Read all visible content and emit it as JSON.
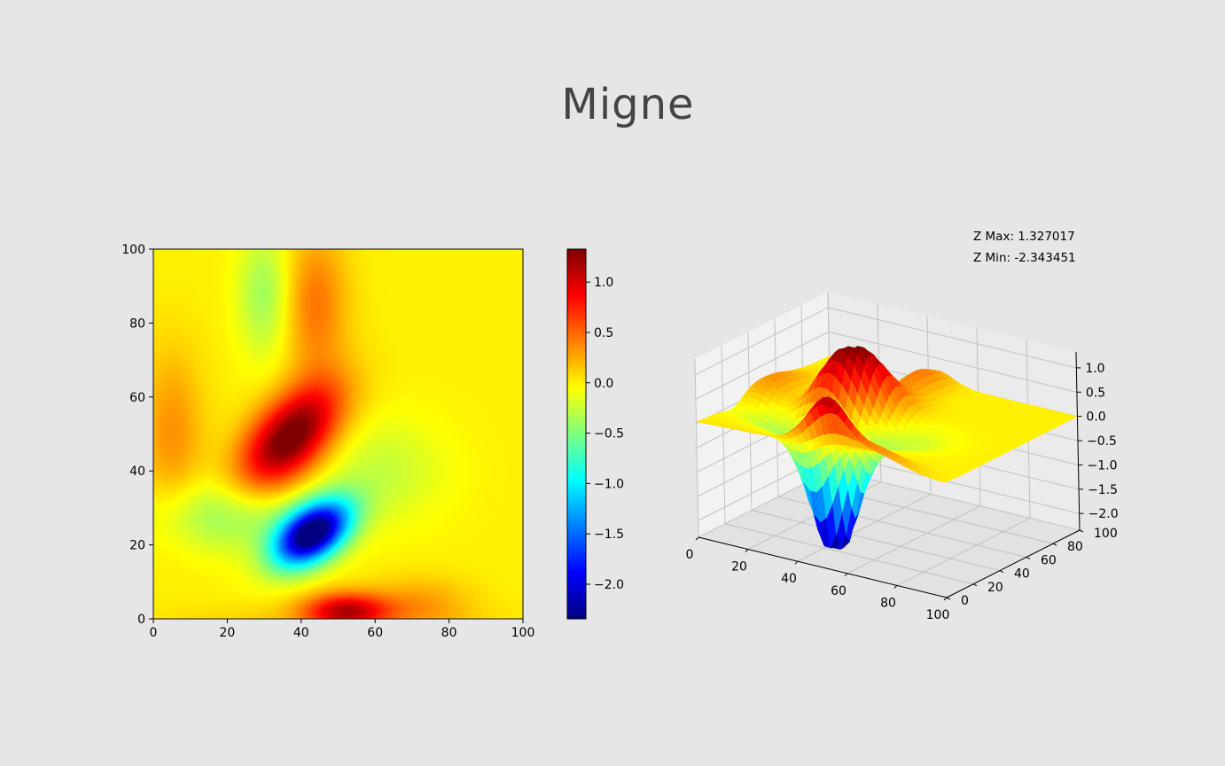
{
  "title": "Migne",
  "colors": {
    "background": "#e6e6e6",
    "title": "#444444",
    "colormap": "jet"
  },
  "z_info": {
    "max_label": "Z Max: 1.327017",
    "min_label": "Z Min: -2.343451"
  },
  "chart_data": [
    {
      "type": "heatmap",
      "title": "",
      "xlabel": "",
      "ylabel": "",
      "xlim": [
        0,
        100
      ],
      "ylim": [
        0,
        100
      ],
      "x_ticks": [
        "0",
        "20",
        "40",
        "60",
        "80",
        "100"
      ],
      "y_ticks": [
        "0",
        "20",
        "40",
        "60",
        "80",
        "100"
      ],
      "colormap": "jet",
      "zlim": [
        -2.343451,
        1.327017
      ],
      "colorbar_ticks": [
        "1.0",
        "0.5",
        "0.0",
        "−0.5",
        "−1.0",
        "−1.5",
        "−2.0"
      ],
      "colorbar_tick_values": [
        1.0,
        0.5,
        0.0,
        -0.5,
        -1.0,
        -1.5,
        -2.0
      ],
      "features": [
        {
          "x": 38,
          "y": 48,
          "z": 1.33
        },
        {
          "x": 43,
          "y": 23,
          "z": -2.34
        },
        {
          "x": 53,
          "y": 3,
          "z": 0.95
        },
        {
          "x": 30,
          "y": 90,
          "z": -0.35
        }
      ]
    },
    {
      "type": "surface",
      "title": "",
      "xlim": [
        0,
        100
      ],
      "ylim": [
        0,
        100
      ],
      "zlim": [
        -2.343451,
        1.327017
      ],
      "x_ticks": [
        "0",
        "20",
        "40",
        "60",
        "80",
        "100"
      ],
      "y_ticks": [
        "0",
        "20",
        "40",
        "60",
        "80",
        "100"
      ],
      "z_ticks": [
        "1.0",
        "0.5",
        "0.0",
        "−0.5",
        "−1.0",
        "−1.5",
        "−2.0"
      ],
      "z_tick_values": [
        1.0,
        0.5,
        0.0,
        -0.5,
        -1.0,
        -1.5,
        -2.0
      ],
      "grid": true,
      "colormap": "jet"
    }
  ]
}
